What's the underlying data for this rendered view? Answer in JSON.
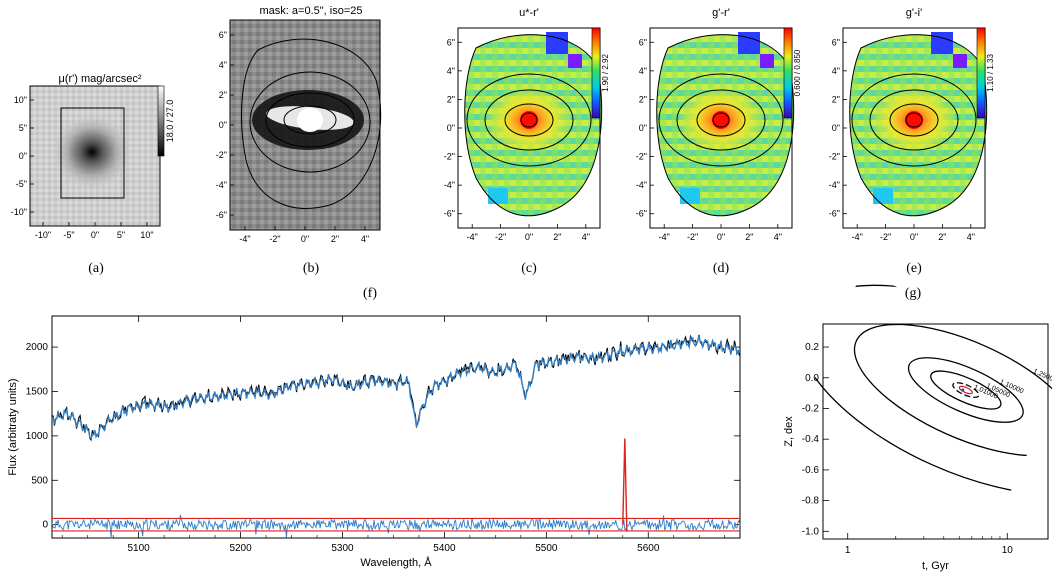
{
  "panels": {
    "a": {
      "title": "μ(r') mag/arcsec²",
      "caption": "(a)",
      "xticks": [
        "-10\"",
        "-5\"",
        "0\"",
        "5\"",
        "10\""
      ],
      "yticks": [
        "10\"",
        "5\"",
        "0\"",
        "-5\"",
        "-10\""
      ],
      "colorbar_label": "18.0 / 27.0"
    },
    "b": {
      "title": "mask: a=0.5\", iso=25",
      "caption": "(b)",
      "xticks": [
        "-4\"",
        "-2\"",
        "0\"",
        "2\"",
        "4\""
      ],
      "yticks": [
        "6\"",
        "4\"",
        "2\"",
        "0\"",
        "-2\"",
        "-4\"",
        "-6\""
      ]
    },
    "c": {
      "title": "u*-r'",
      "caption": "(c)",
      "xticks": [
        "-4\"",
        "-2\"",
        "0\"",
        "2\"",
        "4\""
      ],
      "yticks": [
        "6\"",
        "4\"",
        "2\"",
        "0\"",
        "-2\"",
        "-4\"",
        "-6\""
      ],
      "colorbar_label": "1.90 / 2.92"
    },
    "d": {
      "title": "g'-r'",
      "caption": "(d)",
      "xticks": [
        "-4\"",
        "-2\"",
        "0\"",
        "2\"",
        "4\""
      ],
      "yticks": [
        "6\"",
        "4\"",
        "2\"",
        "0\"",
        "-2\"",
        "-4\"",
        "-6\""
      ],
      "colorbar_label": "0.600 / 0.850"
    },
    "e": {
      "title": "g'-i'",
      "caption": "(e)",
      "xticks": [
        "-4\"",
        "-2\"",
        "0\"",
        "2\"",
        "4\""
      ],
      "yticks": [
        "6\"",
        "4\"",
        "2\"",
        "0\"",
        "-2\"",
        "-4\"",
        "-6\""
      ],
      "colorbar_label": "1.10 / 1.33"
    }
  },
  "captions": {
    "f": "(f)",
    "g": "(g)"
  },
  "chart_data": [
    {
      "type": "line",
      "panel": "f",
      "xlabel": "Wavelength, Å",
      "ylabel": "Flux (arbitraty units)",
      "xlim": [
        5015,
        5690
      ],
      "ylim": [
        -150,
        2350
      ],
      "xticks": [
        5100,
        5200,
        5300,
        5400,
        5500,
        5600
      ],
      "yticks": [
        0,
        500,
        1000,
        1500,
        2000
      ],
      "series": [
        {
          "role": "observed",
          "color": "#000000",
          "x": [
            5015,
            5030,
            5045,
            5055,
            5070,
            5090,
            5110,
            5130,
            5150,
            5170,
            5190,
            5210,
            5230,
            5250,
            5270,
            5290,
            5310,
            5330,
            5350,
            5365,
            5372,
            5380,
            5390,
            5400,
            5410,
            5420,
            5435,
            5450,
            5470,
            5480,
            5490,
            5510,
            5530,
            5550,
            5570,
            5590,
            5610,
            5630,
            5650,
            5670,
            5690
          ],
          "y": [
            1200,
            1260,
            1120,
            1000,
            1170,
            1320,
            1370,
            1330,
            1420,
            1450,
            1480,
            1500,
            1470,
            1580,
            1600,
            1650,
            1560,
            1640,
            1600,
            1620,
            1130,
            1380,
            1580,
            1620,
            1700,
            1750,
            1780,
            1720,
            1820,
            1450,
            1820,
            1850,
            1900,
            1880,
            1950,
            1990,
            2000,
            2040,
            2080,
            2010,
            1980
          ]
        },
        {
          "role": "model",
          "color": "#2f7fc8",
          "x": [
            5015,
            5030,
            5045,
            5055,
            5070,
            5090,
            5110,
            5130,
            5150,
            5170,
            5190,
            5210,
            5230,
            5250,
            5270,
            5290,
            5310,
            5330,
            5350,
            5365,
            5372,
            5380,
            5390,
            5400,
            5410,
            5420,
            5435,
            5450,
            5470,
            5480,
            5490,
            5510,
            5530,
            5550,
            5570,
            5590,
            5610,
            5630,
            5650,
            5670,
            5690
          ],
          "y": [
            1190,
            1250,
            1110,
            990,
            1160,
            1310,
            1360,
            1320,
            1410,
            1440,
            1470,
            1490,
            1460,
            1570,
            1590,
            1640,
            1550,
            1630,
            1590,
            1610,
            1120,
            1370,
            1570,
            1610,
            1690,
            1740,
            1770,
            1710,
            1810,
            1440,
            1810,
            1840,
            1890,
            1870,
            1940,
            1980,
            1990,
            2030,
            2070,
            2000,
            1970
          ]
        },
        {
          "role": "residuals",
          "color": "#2f7fc8",
          "level": 0,
          "scatter": 60
        },
        {
          "role": "error-limits",
          "color": "#e0201a",
          "values": [
            70,
            -70
          ]
        },
        {
          "role": "masked-line",
          "color": "#e0201a",
          "x": 5577,
          "peak": 970
        }
      ]
    },
    {
      "type": "contour",
      "panel": "g",
      "xlabel": "t, Gyr",
      "ylabel": "Z, dex",
      "xscale": "log",
      "xlim": [
        0.7,
        18
      ],
      "ylim": [
        -1.05,
        0.35
      ],
      "xticks": [
        1,
        10
      ],
      "xtick_labels": [
        "1",
        "10"
      ],
      "yticks": [
        0.2,
        0.0,
        -0.2,
        -0.4,
        -0.6,
        -0.8,
        -1.0
      ],
      "ytick_labels": [
        "0.2",
        "0.0",
        "-0.2",
        "-0.4",
        "-0.6",
        "-0.8",
        "-1.0"
      ],
      "minimum": {
        "t": 5.5,
        "Z": -0.08
      },
      "levels": [
        {
          "value": "1.01000",
          "style": "dashed"
        },
        {
          "value": "1.05000",
          "style": "solid"
        },
        {
          "value": "1.10000",
          "style": "solid"
        },
        {
          "value": "1.25000",
          "style": "solid"
        },
        {
          "value": "1.40000",
          "style": "solid"
        }
      ]
    }
  ]
}
